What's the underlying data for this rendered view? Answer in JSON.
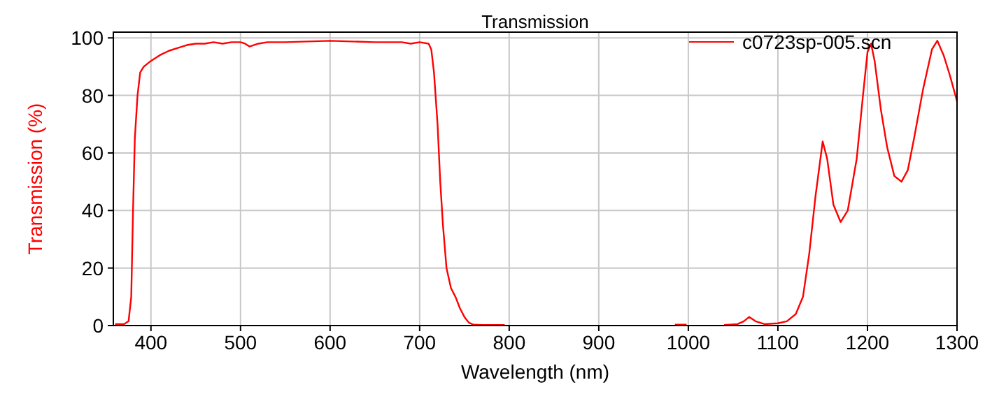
{
  "chart_data": {
    "type": "line",
    "title": "Transmission",
    "xlabel": "Wavelength (nm)",
    "ylabel": "Transmission (%)",
    "xlim": [
      358,
      1300
    ],
    "ylim": [
      0,
      102
    ],
    "xticks": [
      400,
      500,
      600,
      700,
      800,
      900,
      1000,
      1100,
      1200,
      1300
    ],
    "yticks": [
      0,
      20,
      40,
      60,
      80,
      100
    ],
    "grid": true,
    "legend": "top",
    "line_style": "solid",
    "marker": "none",
    "series": [
      {
        "name": "c0723sp-005.scn",
        "color": "#ff0000",
        "x": [
          360,
          370,
          375,
          378,
          380,
          382,
          385,
          388,
          392,
          400,
          410,
          420,
          430,
          440,
          450,
          460,
          470,
          480,
          490,
          500,
          505,
          510,
          520,
          530,
          550,
          600,
          650,
          680,
          690,
          700,
          710,
          713,
          716,
          720,
          723,
          726,
          730,
          735,
          740,
          745,
          750,
          755,
          760,
          770,
          795,
          800,
          985,
          998,
          1000,
          1040,
          1055,
          1062,
          1068,
          1075,
          1085,
          1100,
          1110,
          1120,
          1128,
          1135,
          1142,
          1150,
          1155,
          1162,
          1170,
          1178,
          1188,
          1195,
          1200,
          1204,
          1208,
          1215,
          1222,
          1230,
          1238,
          1245,
          1252,
          1262,
          1272,
          1278,
          1285,
          1292,
          1300
        ],
        "values": [
          0.5,
          0.5,
          1.5,
          10,
          40,
          65,
          80,
          88,
          90,
          92,
          94,
          95.5,
          96.5,
          97.5,
          98,
          98,
          98.5,
          98,
          98.5,
          98.5,
          98,
          97,
          98,
          98.5,
          98.5,
          99,
          98.5,
          98.5,
          98,
          98.5,
          98,
          96,
          88,
          70,
          50,
          35,
          20,
          13,
          10,
          6,
          3,
          1,
          0.3,
          0.2,
          0.2,
          null,
          0.3,
          0.3,
          null,
          0.2,
          0.5,
          1.5,
          3,
          1.5,
          0.5,
          0.8,
          1.5,
          4,
          10,
          25,
          45,
          64,
          58,
          42,
          36,
          40,
          58,
          80,
          95,
          98,
          92,
          75,
          62,
          52,
          50,
          54,
          65,
          82,
          96,
          99,
          94,
          87,
          78
        ]
      }
    ]
  }
}
